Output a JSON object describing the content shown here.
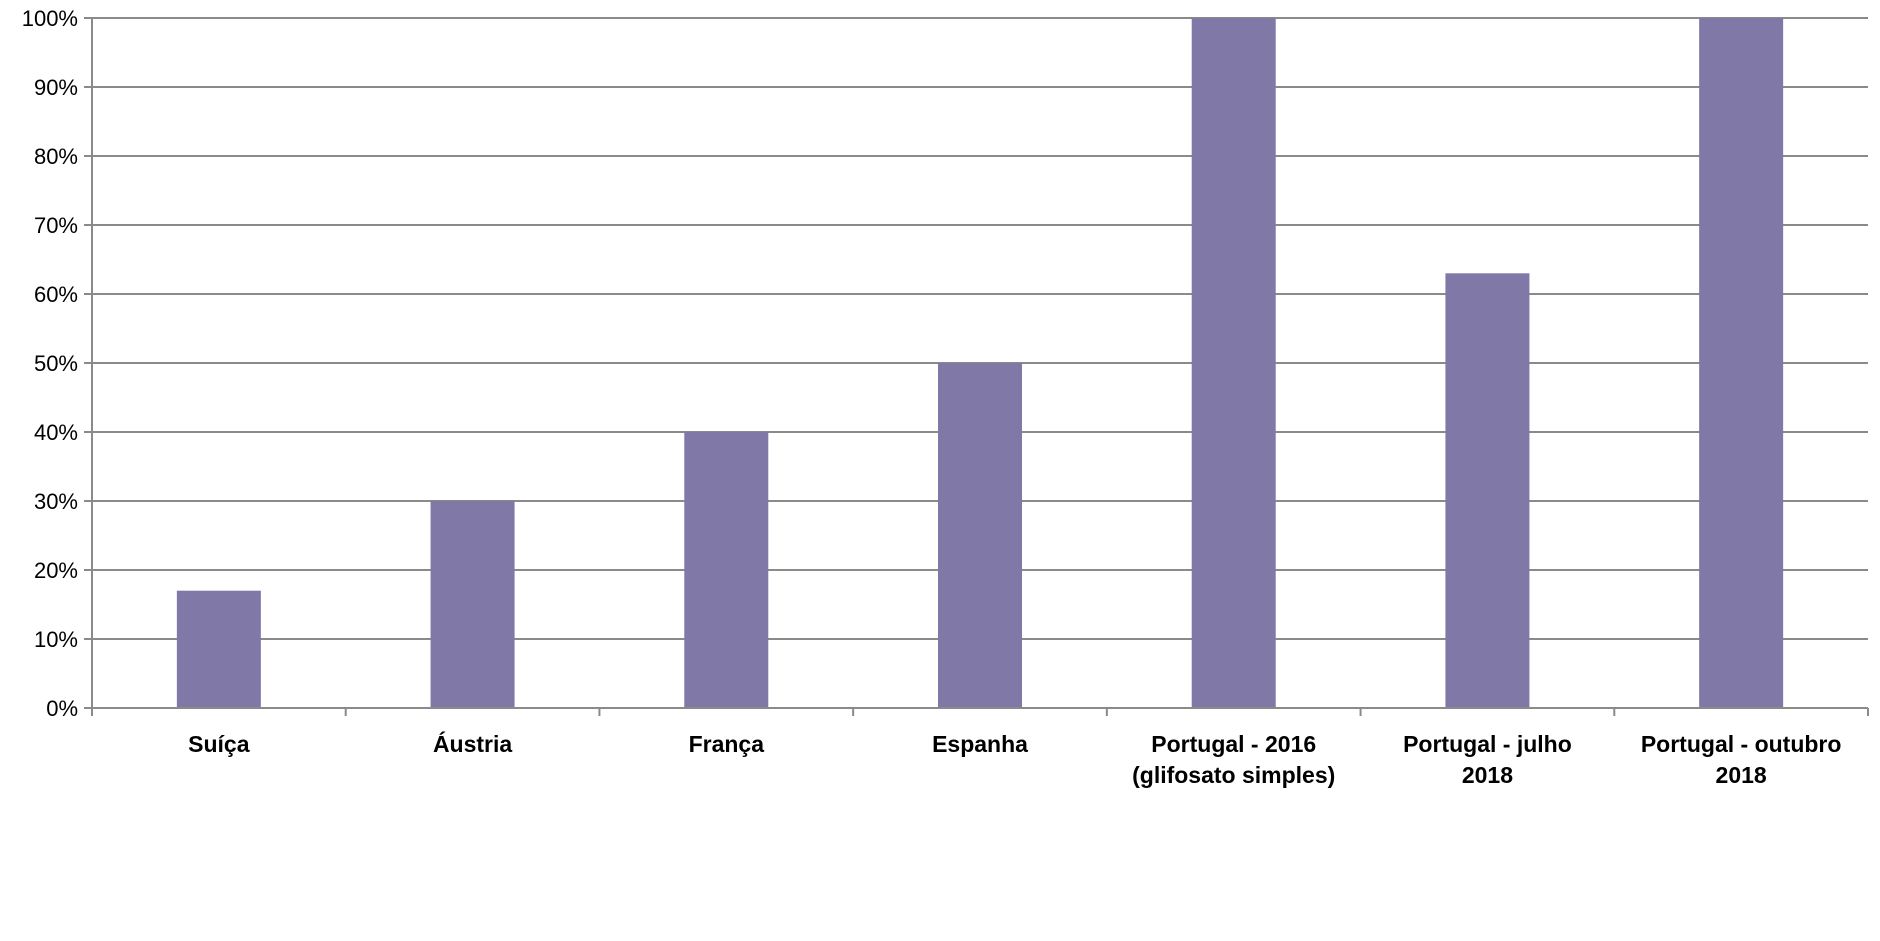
{
  "chart_data": {
    "type": "bar",
    "categories": [
      [
        "Suíça"
      ],
      [
        "Áustria"
      ],
      [
        "França"
      ],
      [
        "Espanha"
      ],
      [
        "Portugal - 2016",
        "(glifosato simples)"
      ],
      [
        "Portugal - julho",
        "2018"
      ],
      [
        "Portugal - outubro",
        "2018"
      ]
    ],
    "values": [
      0.17,
      0.3,
      0.4,
      0.5,
      1.0,
      0.63,
      1.0
    ],
    "ylim": [
      0,
      1
    ],
    "yticks": [
      {
        "value": 0,
        "label": "0%"
      },
      {
        "value": 0.1,
        "label": "10%"
      },
      {
        "value": 0.2,
        "label": "20%"
      },
      {
        "value": 0.3,
        "label": "30%"
      },
      {
        "value": 0.4,
        "label": "40%"
      },
      {
        "value": 0.5,
        "label": "50%"
      },
      {
        "value": 0.6,
        "label": "60%"
      },
      {
        "value": 0.7,
        "label": "70%"
      },
      {
        "value": 0.8,
        "label": "80%"
      },
      {
        "value": 0.9,
        "label": "90%"
      },
      {
        "value": 1,
        "label": "100%"
      }
    ],
    "grid": true,
    "legend": "none",
    "colors": {
      "bar": "#8079A7",
      "grid": "#8A8A8A",
      "axis": "#8A8A8A"
    }
  }
}
